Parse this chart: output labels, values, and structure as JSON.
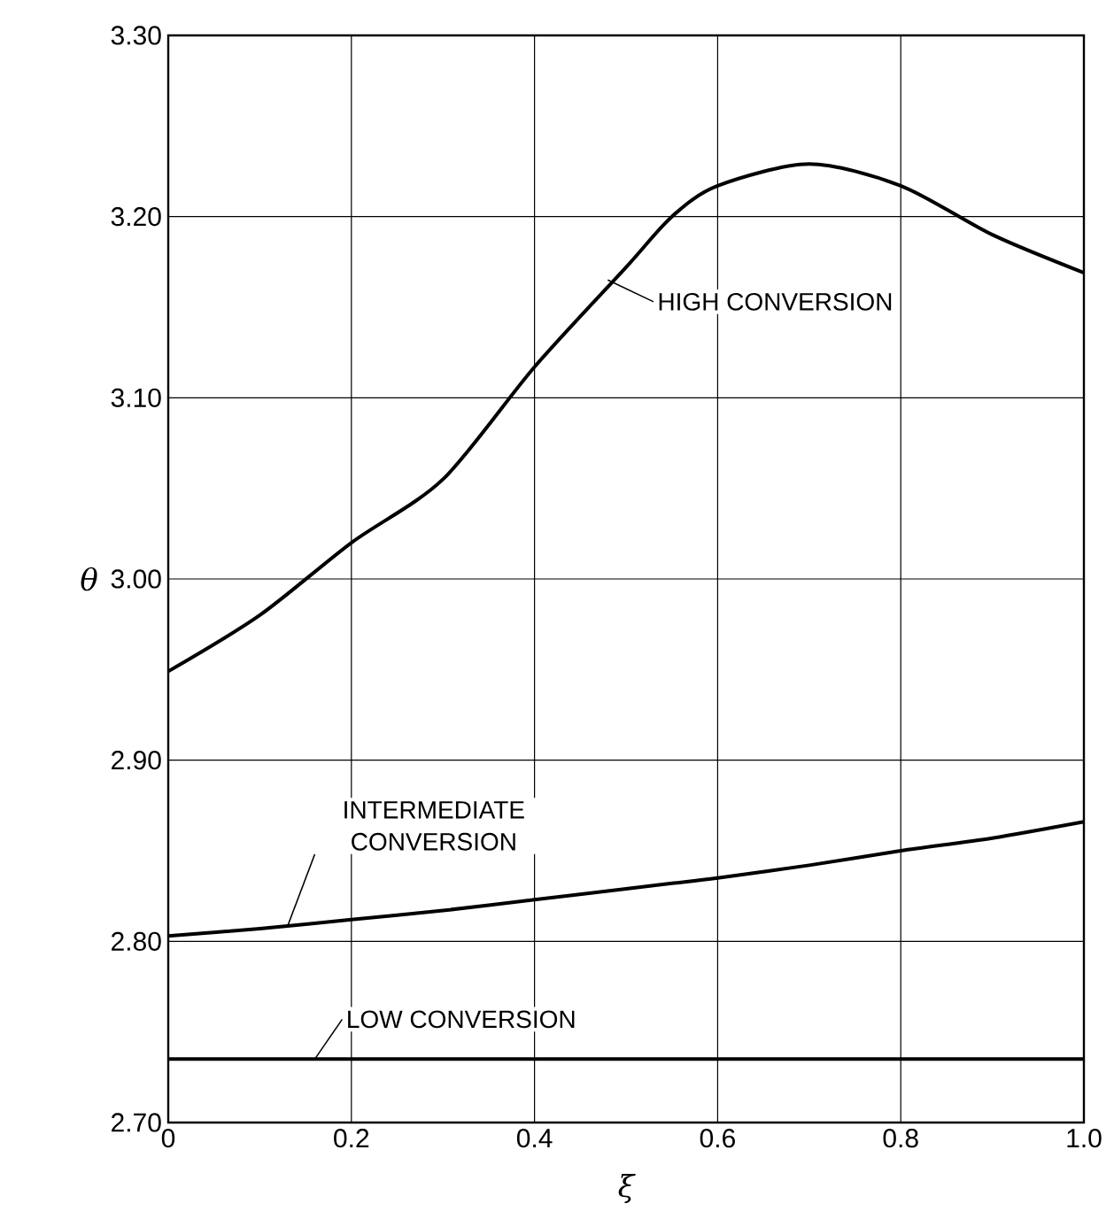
{
  "chart_data": {
    "type": "line",
    "xlabel": "ξ",
    "ylabel": "θ",
    "x": [
      0,
      0.1,
      0.2,
      0.3,
      0.4,
      0.5,
      0.55,
      0.6,
      0.7,
      0.8,
      0.9,
      1.0
    ],
    "series": [
      {
        "color": "#000000",
        "values": [
          2.949,
          2.98,
          3.02,
          3.055,
          3.117,
          3.172,
          3.2,
          3.217,
          3.229,
          3.217,
          3.19,
          3.169
        ]
      },
      {
        "color": "#000000",
        "values": [
          2.803,
          2.807,
          2.812,
          2.817,
          2.823,
          2.829,
          2.832,
          2.835,
          2.842,
          2.85,
          2.857,
          2.866
        ]
      },
      {
        "color": "#000000",
        "values": [
          2.735,
          2.735,
          2.735,
          2.735,
          2.735,
          2.735,
          2.735,
          2.735,
          2.735,
          2.735,
          2.735,
          2.735
        ]
      }
    ],
    "annotations": [
      {
        "text": "HIGH CONVERSION",
        "x": 0.48,
        "y": 3.165
      },
      {
        "text": "INTERMEDIATE CONVERSION",
        "x": 0.13,
        "y": 2.808
      },
      {
        "text": "LOW CONVERSION",
        "x": 0.16,
        "y": 2.735
      }
    ],
    "xlim": [
      0,
      1.0
    ],
    "ylim": [
      2.7,
      3.3
    ],
    "xticks": [
      0,
      0.2,
      0.4,
      0.6,
      0.8,
      {
        "value": 1.0,
        "label": "1.0"
      }
    ],
    "yticks": [
      {
        "value": 2.7,
        "label": "2.70"
      },
      {
        "value": 2.8,
        "label": "2.80"
      },
      {
        "value": 2.9,
        "label": "2.90"
      },
      {
        "value": 3.0,
        "label": "3.00"
      },
      {
        "value": 3.1,
        "label": "3.10"
      },
      {
        "value": 3.2,
        "label": "3.20"
      },
      {
        "value": 3.3,
        "label": "3.30"
      }
    ],
    "grid": true,
    "marker": "none",
    "line_style": "solid"
  }
}
